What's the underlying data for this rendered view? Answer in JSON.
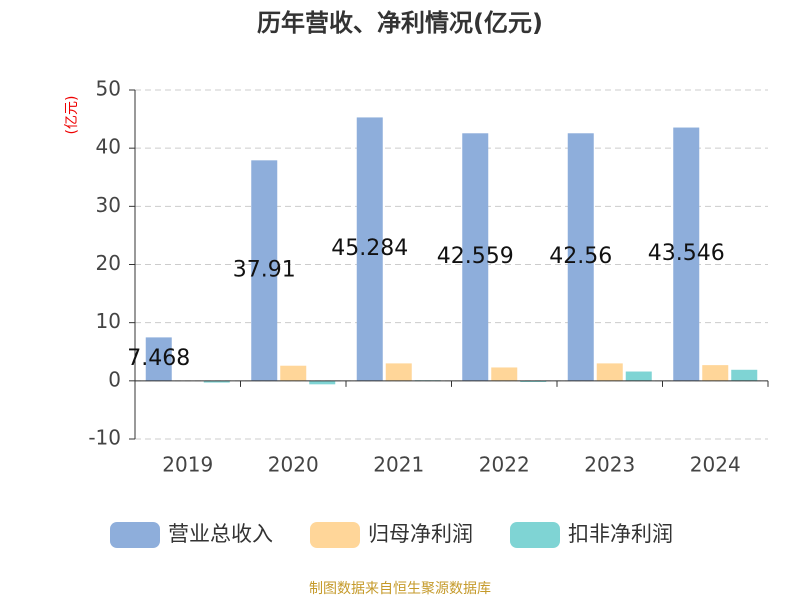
{
  "chart_data": {
    "type": "bar",
    "title": "历年营收、净利情况(亿元)",
    "y_label": "(亿元)",
    "footer": "制图数据来自恒生聚源数据库",
    "categories": [
      "2019",
      "2020",
      "2021",
      "2022",
      "2023",
      "2024"
    ],
    "series": [
      {
        "name": "营业总收入",
        "color": "#8eaedb",
        "values": [
          7.468,
          37.91,
          45.284,
          42.559,
          42.56,
          43.546
        ],
        "data_labels": true
      },
      {
        "name": "归母净利润",
        "color": "#ffd699",
        "values": [
          0,
          2.6,
          3.0,
          2.3,
          3.0,
          2.7
        ]
      },
      {
        "name": "扣非净利润",
        "color": "#7fd4d4",
        "values": [
          -0.3,
          -0.6,
          0.1,
          -0.2,
          1.6,
          1.9
        ]
      }
    ],
    "ylim": [
      -10,
      50
    ],
    "yticks": [
      -10,
      0,
      10,
      20,
      30,
      40,
      50
    ],
    "grid": true
  }
}
